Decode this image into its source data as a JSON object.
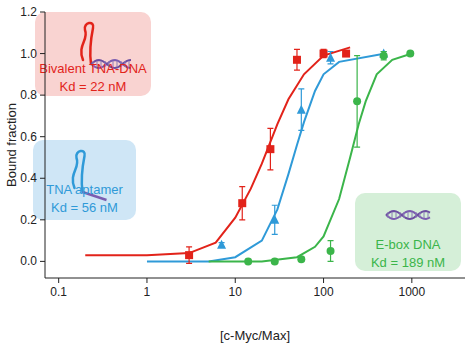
{
  "chart_data": {
    "type": "scatter",
    "x_label": "[c-Myc/Max]",
    "y_label": "Bound fraction",
    "log": "x",
    "xlim": [
      0.07,
      4000
    ],
    "ylim": [
      -0.08,
      1.2
    ],
    "xticks": [
      0.1,
      1,
      10,
      100,
      1000
    ],
    "yticks": [
      {
        "value": 0,
        "label": "0.0"
      },
      {
        "value": 0.2,
        "label": "0.2"
      },
      {
        "value": 0.4,
        "label": "0.4"
      },
      {
        "value": 0.6,
        "label": "0.6"
      },
      {
        "value": 0.8,
        "label": "0.8"
      },
      {
        "value": 1,
        "label": "1.0"
      },
      {
        "value": 1.2,
        "label": "1.2"
      }
    ],
    "series": [
      {
        "name": "Bivalent TNA-DNA",
        "type": "scatter",
        "color": "#e2231a",
        "marker": "square",
        "x": [
          3,
          12,
          25,
          50,
          100,
          180
        ],
        "values": [
          0.03,
          0.28,
          0.54,
          0.97,
          1.0,
          1.0
        ],
        "errors": [
          0.04,
          0.08,
          0.1,
          0.05,
          0.02,
          0.01
        ],
        "annotation": "Kd = 22 nM"
      },
      {
        "name": "TNA aptamer",
        "type": "scatter",
        "color": "#2f9ad8",
        "marker": "triangle",
        "x": [
          7,
          28,
          56,
          120,
          480
        ],
        "values": [
          0.08,
          0.2,
          0.73,
          0.98,
          1.0
        ],
        "errors": [
          0.01,
          0.07,
          0.1,
          0.03,
          0.01
        ],
        "annotation": "Kd = 56 nM"
      },
      {
        "name": "E-box DNA",
        "type": "scatter",
        "color": "#3bb54a",
        "marker": "circle",
        "x": [
          14,
          28,
          56,
          120,
          240,
          480,
          960
        ],
        "values": [
          0.0,
          0.0,
          0.01,
          0.05,
          0.77,
          0.99,
          1.0
        ],
        "errors": [
          0.01,
          0.01,
          0.01,
          0.05,
          0.22,
          0.02,
          0.01
        ],
        "annotation": "Kd = 189 nM"
      },
      {
        "type": "line",
        "color": "#e2231a",
        "line_style": "solid",
        "x": [
          0.2,
          1,
          3,
          6,
          10,
          15,
          20,
          30,
          40,
          60,
          100,
          200
        ],
        "values": [
          0.03,
          0.03,
          0.04,
          0.09,
          0.21,
          0.35,
          0.47,
          0.66,
          0.78,
          0.9,
          0.99,
          1.03
        ]
      },
      {
        "type": "line",
        "color": "#2f9ad8",
        "line_style": "solid",
        "x": [
          1,
          5,
          10,
          20,
          30,
          40,
          50,
          60,
          80,
          100,
          150,
          500
        ],
        "values": [
          0.0,
          0.0,
          0.02,
          0.1,
          0.25,
          0.42,
          0.56,
          0.67,
          0.82,
          0.9,
          0.96,
          1.0
        ]
      },
      {
        "type": "line",
        "color": "#3bb54a",
        "line_style": "solid",
        "x": [
          5,
          20,
          50,
          80,
          100,
          150,
          200,
          250,
          300,
          400,
          600,
          1000
        ],
        "values": [
          0.0,
          0.0,
          0.02,
          0.07,
          0.12,
          0.3,
          0.5,
          0.66,
          0.77,
          0.9,
          0.97,
          1.0
        ]
      }
    ]
  }
}
